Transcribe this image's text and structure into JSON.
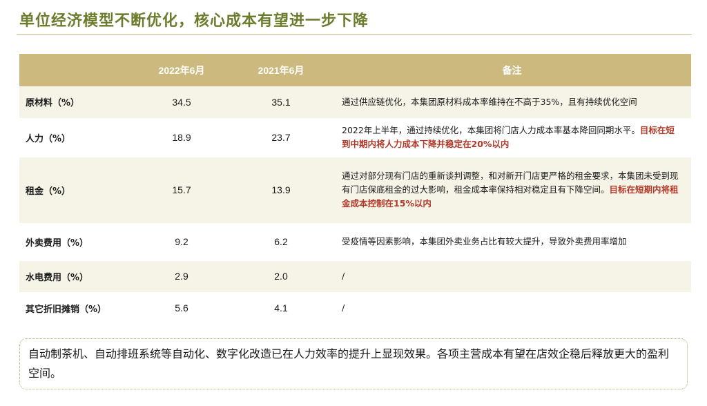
{
  "title": "单位经济模型不断优化，核心成本有望进一步下降",
  "table": {
    "headers": [
      "",
      "2022年6月",
      "2021年6月",
      "备注"
    ],
    "rows": [
      {
        "label": "原材料（%）",
        "v2022": "34.5",
        "v2021": "35.1",
        "note_plain": "通过供应链优化，本集团原材料成本率维持在不高于35%，且有持续优化空间",
        "note_highlight": ""
      },
      {
        "label": "人力（%）",
        "v2022": "18.9",
        "v2021": "23.7",
        "note_plain": "2022年上半年，通过持续优化，本集团将门店人力成本率基本降回同期水平。",
        "note_highlight": "目标在短到中期内将人力成本下降并稳定在20%以内"
      },
      {
        "label": "租金（%）",
        "v2022": "15.7",
        "v2021": "13.9",
        "note_plain": "通过对部分现有门店的重新谈判调整，和对新开门店更严格的租金要求，本集团未受到现有门店保底租金的过大影响，租金成本率保持相对稳定且有下降空间。",
        "note_highlight": "目标在短期内将租金成本控制在15%以内"
      },
      {
        "label": "外卖费用（%）",
        "v2022": "9.2",
        "v2021": "6.2",
        "note_plain": "受疫情等因素影响，本集团外卖业务占比有较大提升，导致外卖费用率增加",
        "note_highlight": ""
      },
      {
        "label": "水电费用（%）",
        "v2022": "2.9",
        "v2021": "2.0",
        "note_plain": "/",
        "note_highlight": ""
      },
      {
        "label": "其它折旧摊销（%）",
        "v2022": "5.6",
        "v2021": "4.1",
        "note_plain": "/",
        "note_highlight": ""
      }
    ]
  },
  "footer": "自动制茶机、自动排班系统等自动化、数字化改造已在人力效率的提升上显现效果。各项主营成本有望在店效企稳后释放更大的盈利空间。",
  "colors": {
    "title": "#6b7d2c",
    "header_bg": "#cbb97d",
    "row_alt": "#f6f3e7",
    "highlight": "#b13a2a",
    "footer_border": "#a4b86a"
  }
}
